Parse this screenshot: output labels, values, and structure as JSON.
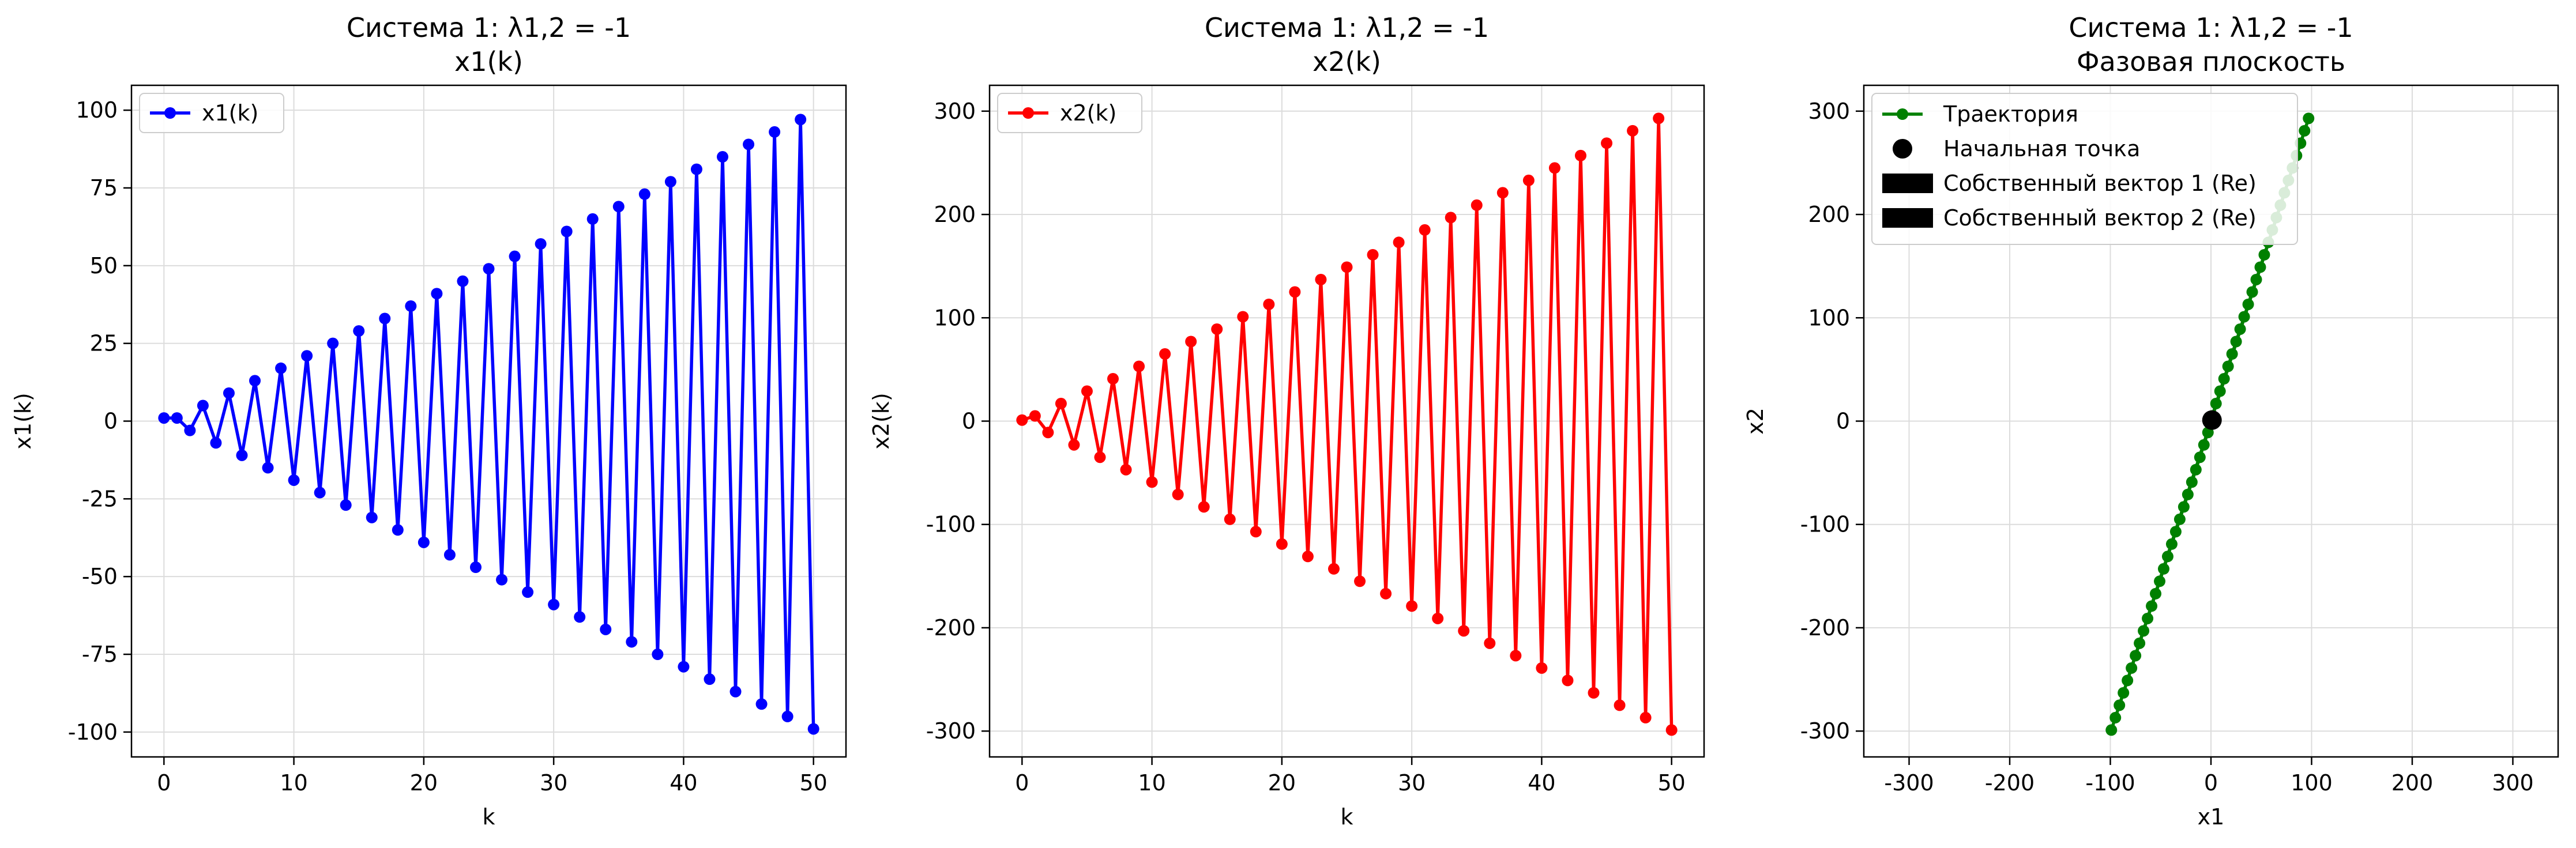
{
  "colors": {
    "x1": "#0000ff",
    "x2": "#ff0000",
    "traj": "#008000",
    "start": "#000000"
  },
  "chart_data": [
    {
      "type": "line",
      "title_line1": "Система 1: λ1,2 = -1",
      "title_line2": "x1(k)",
      "xlabel": "k",
      "ylabel": "x1(k)",
      "xlim": [
        -2.5,
        52.5
      ],
      "ylim": [
        -108,
        108
      ],
      "xticks": [
        0,
        10,
        20,
        30,
        40,
        50
      ],
      "yticks": [
        -100,
        -75,
        -50,
        -25,
        0,
        25,
        50,
        75,
        100
      ],
      "grid": true,
      "legend": "top-left",
      "series": [
        {
          "name": "x1(k)",
          "x": [
            0,
            1,
            2,
            3,
            4,
            5,
            6,
            7,
            8,
            9,
            10,
            11,
            12,
            13,
            14,
            15,
            16,
            17,
            18,
            19,
            20,
            21,
            22,
            23,
            24,
            25,
            26,
            27,
            28,
            29,
            30,
            31,
            32,
            33,
            34,
            35,
            36,
            37,
            38,
            39,
            40,
            41,
            42,
            43,
            44,
            45,
            46,
            47,
            48,
            49,
            50
          ],
          "y": [
            1,
            1,
            -3,
            5,
            -7,
            9,
            -11,
            13,
            -15,
            17,
            -19,
            21,
            -23,
            25,
            -27,
            29,
            -31,
            33,
            -35,
            37,
            -39,
            41,
            -43,
            45,
            -47,
            49,
            -51,
            53,
            -55,
            57,
            -59,
            61,
            -63,
            65,
            -67,
            69,
            -71,
            73,
            -75,
            77,
            -79,
            81,
            -83,
            85,
            -87,
            89,
            -91,
            93,
            -95,
            97,
            -99
          ]
        }
      ]
    },
    {
      "type": "line",
      "title_line1": "Система 1: λ1,2 = -1",
      "title_line2": "x2(k)",
      "xlabel": "k",
      "ylabel": "x2(k)",
      "xlim": [
        -2.5,
        52.5
      ],
      "ylim": [
        -325,
        325
      ],
      "xticks": [
        0,
        10,
        20,
        30,
        40,
        50
      ],
      "yticks": [
        -300,
        -200,
        -100,
        0,
        100,
        200,
        300
      ],
      "grid": true,
      "legend": "top-left",
      "series": [
        {
          "name": "x2(k)",
          "x": [
            0,
            1,
            2,
            3,
            4,
            5,
            6,
            7,
            8,
            9,
            10,
            11,
            12,
            13,
            14,
            15,
            16,
            17,
            18,
            19,
            20,
            21,
            22,
            23,
            24,
            25,
            26,
            27,
            28,
            29,
            30,
            31,
            32,
            33,
            34,
            35,
            36,
            37,
            38,
            39,
            40,
            41,
            42,
            43,
            44,
            45,
            46,
            47,
            48,
            49,
            50
          ],
          "y": [
            1,
            5,
            -11,
            17,
            -23,
            29,
            -35,
            41,
            -47,
            53,
            -59,
            65,
            -71,
            77,
            -83,
            89,
            -95,
            101,
            -107,
            113,
            -119,
            125,
            -131,
            137,
            -143,
            149,
            -155,
            161,
            -167,
            173,
            -179,
            185,
            -191,
            197,
            -203,
            209,
            -215,
            221,
            -227,
            233,
            -239,
            245,
            -251,
            257,
            -263,
            269,
            -275,
            281,
            -287,
            293,
            -299
          ]
        }
      ]
    },
    {
      "type": "scatter",
      "title_line1": "Система 1: λ1,2 = -1",
      "title_line2": "Фазовая плоскость",
      "xlabel": "x1",
      "ylabel": "x2",
      "xlim": [
        -345,
        345
      ],
      "ylim": [
        -325,
        325
      ],
      "xticks": [
        -300,
        -200,
        -100,
        0,
        100,
        200,
        300
      ],
      "yticks": [
        -300,
        -200,
        -100,
        0,
        100,
        200,
        300
      ],
      "grid": true,
      "legend": "top-left",
      "legend_items": [
        "Траектория",
        "Начальная точка",
        "Собственный вектор 1 (Re)",
        "Собственный вектор 2 (Re)"
      ],
      "series": [
        {
          "name": "Траектория",
          "x": [
            1,
            1,
            -3,
            5,
            -7,
            9,
            -11,
            13,
            -15,
            17,
            -19,
            21,
            -23,
            25,
            -27,
            29,
            -31,
            33,
            -35,
            37,
            -39,
            41,
            -43,
            45,
            -47,
            49,
            -51,
            53,
            -55,
            57,
            -59,
            61,
            -63,
            65,
            -67,
            69,
            -71,
            73,
            -75,
            77,
            -79,
            81,
            -83,
            85,
            -87,
            89,
            -91,
            93,
            -95,
            97,
            -99
          ],
          "y": [
            1,
            5,
            -11,
            17,
            -23,
            29,
            -35,
            41,
            -47,
            53,
            -59,
            65,
            -71,
            77,
            -83,
            89,
            -95,
            101,
            -107,
            113,
            -119,
            125,
            -131,
            137,
            -143,
            149,
            -155,
            161,
            -167,
            173,
            -179,
            185,
            -191,
            197,
            -203,
            209,
            -215,
            221,
            -227,
            233,
            -239,
            245,
            -251,
            257,
            -263,
            269,
            -275,
            281,
            -287,
            293,
            -299
          ]
        },
        {
          "name": "Начальная точка",
          "x": [
            1
          ],
          "y": [
            1
          ]
        }
      ]
    }
  ]
}
